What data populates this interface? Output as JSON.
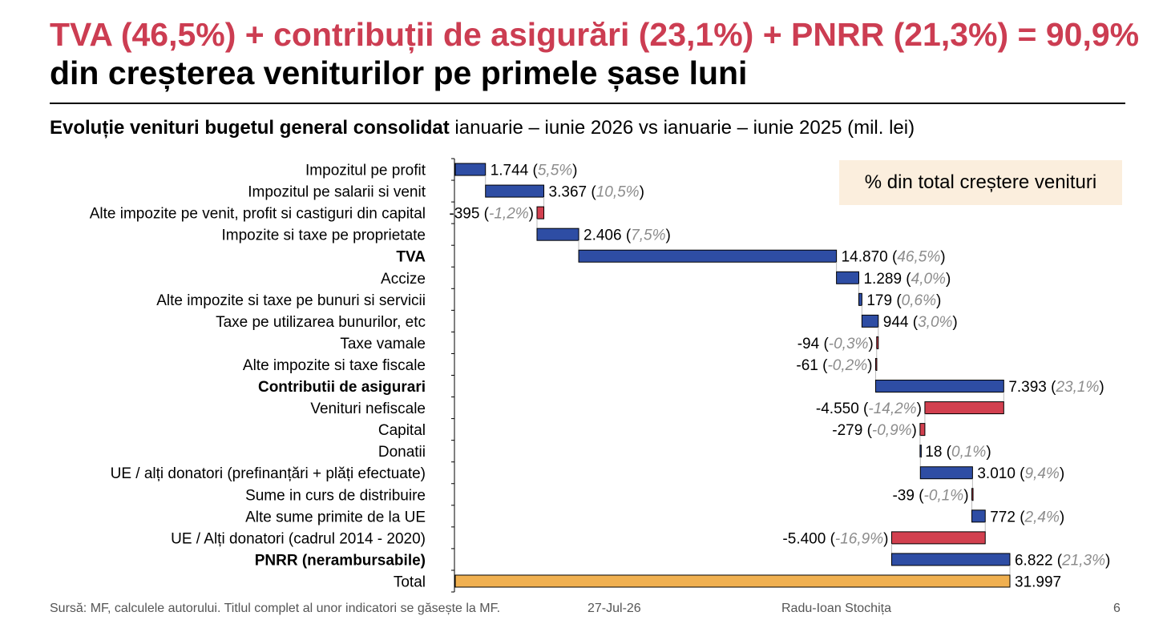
{
  "header": {
    "title_line1": "TVA (46,5%) + contribuții de asigurări (23,1%) + PNRR (21,3%) = 90,9%",
    "title_line2": "din creșterea veniturilor pe primele șase luni",
    "subtitle_bold": "Evoluție venituri bugetul general consolidat",
    "subtitle_rest": " ianuarie – iunie 2026 vs ianuarie – iunie 2025 (mil. lei)"
  },
  "legend_note": "% din total creștere venituri",
  "footer": {
    "source": "Sursă: MF, calculele autorului. Titlul complet al unor indicatori se găsește la MF.",
    "date": "27-Jul-26",
    "author": "Radu-Ioan Stochița",
    "page": "6"
  },
  "colors": {
    "increase": "#2e4da4",
    "decrease": "#d2404f",
    "total": "#f0b050",
    "title": "#cc3d52",
    "pct": "#8c8c8c"
  },
  "chart_data": {
    "type": "waterfall",
    "x_range": [
      -600,
      32500
    ],
    "items": [
      {
        "label": "Impozitul pe profit",
        "value": 1744,
        "value_label": "1.744",
        "pct_label": "5,5%",
        "bold": false
      },
      {
        "label": "Impozitul pe salarii si venit",
        "value": 3367,
        "value_label": "3.367",
        "pct_label": "10,5%",
        "bold": false
      },
      {
        "label": "Alte impozite pe venit, profit si castiguri din capital",
        "value": -395,
        "value_label": "-395",
        "pct_label": "-1,2%",
        "bold": false
      },
      {
        "label": "Impozite si taxe pe proprietate",
        "value": 2406,
        "value_label": "2.406",
        "pct_label": "7,5%",
        "bold": false
      },
      {
        "label": "TVA",
        "value": 14870,
        "value_label": "14.870",
        "pct_label": "46,5%",
        "bold": true
      },
      {
        "label": "Accize",
        "value": 1289,
        "value_label": "1.289",
        "pct_label": "4,0%",
        "bold": false
      },
      {
        "label": "Alte impozite si taxe pe bunuri si servicii",
        "value": 179,
        "value_label": "179",
        "pct_label": "0,6%",
        "bold": false
      },
      {
        "label": "Taxe pe utilizarea bunurilor, etc",
        "value": 944,
        "value_label": "944",
        "pct_label": "3,0%",
        "bold": false
      },
      {
        "label": "Taxe vamale",
        "value": -94,
        "value_label": "-94",
        "pct_label": "-0,3%",
        "bold": false
      },
      {
        "label": "Alte impozite si taxe fiscale",
        "value": -61,
        "value_label": "-61",
        "pct_label": "-0,2%",
        "bold": false
      },
      {
        "label": "Contributii de asigurari ",
        "value": 7393,
        "value_label": "7.393",
        "pct_label": "23,1%",
        "bold": true
      },
      {
        "label": "Venituri nefiscale",
        "value": -4550,
        "value_label": "-4.550",
        "pct_label": "-14,2%",
        "bold": false
      },
      {
        "label": "Capital",
        "value": -279,
        "value_label": "-279",
        "pct_label": "-0,9%",
        "bold": false
      },
      {
        "label": "Donatii",
        "value": 18,
        "value_label": "18",
        "pct_label": "0,1%",
        "bold": false
      },
      {
        "label": "UE / alți donatori (prefinanțări + plăți efectuate)",
        "value": 3010,
        "value_label": "3.010",
        "pct_label": "9,4%",
        "bold": false
      },
      {
        "label": "Sume in curs de distribuire",
        "value": -39,
        "value_label": "-39",
        "pct_label": "-0,1%",
        "bold": false
      },
      {
        "label": "Alte sume primite de la UE ",
        "value": 772,
        "value_label": "772",
        "pct_label": "2,4%",
        "bold": false
      },
      {
        "label": "UE / Alți donatori (cadrul 2014 - 2020)",
        "value": -5400,
        "value_label": "-5.400",
        "pct_label": "-16,9%",
        "bold": false
      },
      {
        "label": "PNRR (nerambursabile)",
        "value": 6822,
        "value_label": "6.822",
        "pct_label": "21,3%",
        "bold": true
      }
    ],
    "total": {
      "label": "Total",
      "value": 31997,
      "value_label": "31.997"
    }
  }
}
